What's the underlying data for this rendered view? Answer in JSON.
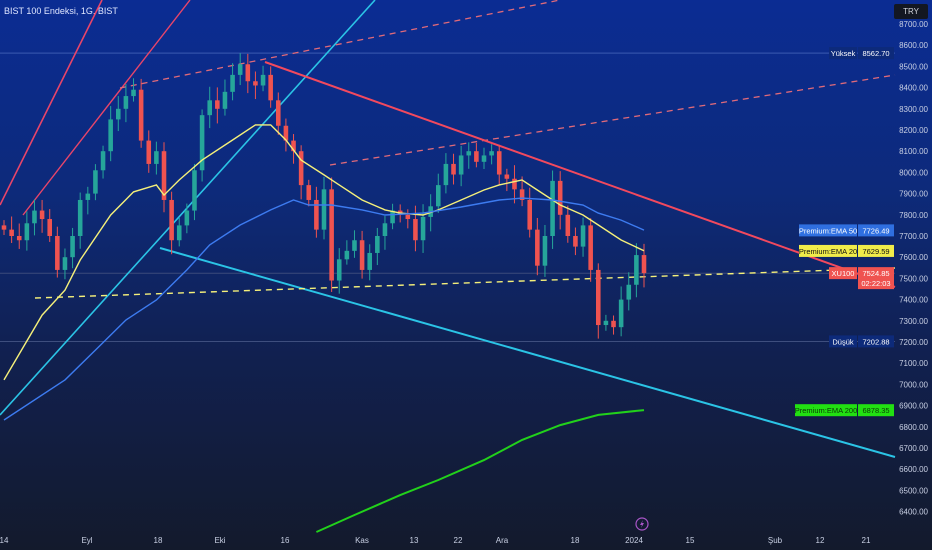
{
  "header": {
    "title": "BIST 100 Endeksi, 1G, BIST",
    "currency": "TRY"
  },
  "chart_data": {
    "type": "candlestick",
    "symbol": "XU100",
    "yaxis": {
      "ticks": [
        8700,
        8600,
        8500,
        8400,
        8300,
        8200,
        8100,
        8000,
        7900,
        7800,
        7700,
        7600,
        7500,
        7400,
        7300,
        7200,
        7100,
        7000,
        6900,
        6800,
        6700,
        6600,
        6500,
        6400
      ],
      "range": [
        6350,
        8800
      ]
    },
    "xaxis": {
      "tick_labels": [
        "14",
        "Eyl",
        "18",
        "Eki",
        "16",
        "Kas",
        "13",
        "22",
        "Ara",
        "18",
        "2024",
        "15",
        "Şub",
        "12",
        "21"
      ]
    },
    "closes": [
      7730,
      7700,
      7680,
      7760,
      7820,
      7780,
      7700,
      7540,
      7600,
      7700,
      7870,
      7900,
      8010,
      8100,
      8250,
      8300,
      8360,
      8390,
      8150,
      8040,
      8100,
      7870,
      7680,
      7750,
      7820,
      8010,
      8270,
      8340,
      8300,
      8380,
      8460,
      8510,
      8430,
      8410,
      8460,
      8340,
      8220,
      8150,
      8100,
      7940,
      7870,
      7730,
      7920,
      7490,
      7590,
      7630,
      7680,
      7540,
      7620,
      7700,
      7760,
      7820,
      7800,
      7780,
      7680,
      7790,
      7840,
      7940,
      8040,
      7990,
      8080,
      8100,
      8050,
      8080,
      8100,
      7990,
      7970,
      7920,
      7870,
      7730,
      7560,
      7700,
      7960,
      7800,
      7700,
      7650,
      7750,
      7540,
      7280,
      7300,
      7270,
      7400,
      7470,
      7610,
      7524.85
    ],
    "indicators": [
      {
        "name": "Premium:EMA 20",
        "value": "7629.59",
        "color": "#f5f07a",
        "points": [
          [
            0,
            7021
          ],
          [
            5,
            7327
          ],
          [
            8,
            7445
          ],
          [
            10,
            7587
          ],
          [
            14,
            7799
          ],
          [
            17,
            7908
          ],
          [
            20,
            7941
          ],
          [
            21,
            7893
          ],
          [
            23,
            7964
          ],
          [
            26,
            8058
          ],
          [
            30,
            8153
          ],
          [
            33,
            8224
          ],
          [
            35,
            8224
          ],
          [
            37,
            8153
          ],
          [
            39,
            8058
          ],
          [
            42,
            7988
          ],
          [
            44,
            7941
          ],
          [
            47,
            7870
          ],
          [
            50,
            7823
          ],
          [
            52,
            7808
          ],
          [
            55,
            7799
          ],
          [
            57,
            7823
          ],
          [
            60,
            7870
          ],
          [
            63,
            7917
          ],
          [
            65,
            7941
          ],
          [
            68,
            7964
          ],
          [
            70,
            7917
          ],
          [
            73,
            7846
          ],
          [
            76,
            7799
          ],
          [
            78,
            7752
          ],
          [
            81,
            7681
          ],
          [
            84,
            7630
          ]
        ]
      },
      {
        "name": "Premium:EMA 50",
        "value": "7726.49",
        "color": "#3d7bf0",
        "points": [
          [
            0,
            6832
          ],
          [
            8,
            7021
          ],
          [
            12,
            7162
          ],
          [
            16,
            7304
          ],
          [
            20,
            7398
          ],
          [
            24,
            7540
          ],
          [
            27,
            7658
          ],
          [
            31,
            7752
          ],
          [
            35,
            7823
          ],
          [
            38,
            7870
          ],
          [
            40,
            7846
          ],
          [
            43,
            7846
          ],
          [
            47,
            7823
          ],
          [
            50,
            7799
          ],
          [
            55,
            7808
          ],
          [
            60,
            7837
          ],
          [
            65,
            7870
          ],
          [
            68,
            7879
          ],
          [
            72,
            7870
          ],
          [
            76,
            7846
          ],
          [
            78,
            7808
          ],
          [
            81,
            7775
          ],
          [
            84,
            7728
          ]
        ]
      },
      {
        "name": "Premium:EMA 200",
        "value": "6878.35",
        "color": "#22d11b",
        "points": [
          [
            41,
            6304
          ],
          [
            46,
            6384
          ],
          [
            52,
            6478
          ],
          [
            57,
            6549
          ],
          [
            63,
            6643
          ],
          [
            68,
            6738
          ],
          [
            73,
            6808
          ],
          [
            78,
            6856
          ],
          [
            84,
            6879
          ]
        ]
      }
    ],
    "levels": {
      "high": {
        "label": "Yüksek",
        "value": "8562.70"
      },
      "low": {
        "label": "Düşük",
        "value": "7202.88"
      },
      "last": {
        "label": "XU100",
        "value": "7524.85",
        "countdown": "02:22:03"
      }
    },
    "colors": {
      "up": "#26a69a",
      "down": "#ef5350",
      "trend_red": "#f2495e",
      "trend_cyan": "#2bc4e6"
    }
  }
}
